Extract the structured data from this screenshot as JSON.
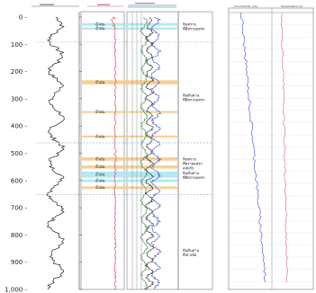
{
  "depth_axis": {
    "ticks": [
      "0",
      "100",
      "200",
      "300",
      "400",
      "500",
      "600",
      "700",
      "800",
      "900",
      "1,000"
    ]
  },
  "zones": [
    {
      "label": "น้ำมัน",
      "depth_top": 22,
      "depth_bottom": 32,
      "color": "cyan"
    },
    {
      "label": "น้ำมัน",
      "depth_top": 38,
      "depth_bottom": 46,
      "color": "cyan"
    },
    {
      "label": "น้ำมัน",
      "depth_top": 232,
      "depth_bottom": 247,
      "color": "orange"
    },
    {
      "label": "น้ำมัน",
      "depth_top": 345,
      "depth_bottom": 352,
      "color": "orange"
    },
    {
      "label": "น้ำมัน",
      "depth_top": 435,
      "depth_bottom": 442,
      "color": "orange"
    },
    {
      "label": "น้ำมัน",
      "depth_top": 515,
      "depth_bottom": 527,
      "color": "orange"
    },
    {
      "label": "น้ำมัน",
      "depth_top": 545,
      "depth_bottom": 556,
      "color": "orange"
    },
    {
      "label": "น้ำมัน",
      "depth_top": 567,
      "depth_bottom": 590,
      "color": "cyan"
    },
    {
      "label": "น้ำมัน",
      "depth_top": 596,
      "depth_bottom": 606,
      "color": "cyan"
    },
    {
      "label": "น้ำมัน",
      "depth_top": 622,
      "depth_bottom": 631,
      "color": "orange"
    }
  ],
  "boundaries_depth": [
    92,
    462,
    652
  ],
  "lithology_labels": [
    {
      "lines": [
        "หินทราย",
        "ที่มีทรายแทรก"
      ],
      "depth": 40
    },
    {
      "lines": [
        "หินดินดาน",
        "ที่มีทรายแทรก"
      ],
      "depth": 300
    },
    {
      "lines": [
        "หินทราย",
        "ที่ทรายแทรก",
        "สลับกับ",
        "หินดินดาน",
        "ที่มีทรายแทรก"
      ],
      "depth": 560
    },
    {
      "lines": [
        "หินดินดาน",
        "สีเทาเข้ม"
      ],
      "depth": 870
    }
  ],
  "panel2_headers": [
    "Conductivity (uS)",
    "Temperature (C)"
  ],
  "colors": {
    "cyan": "#aee6f2",
    "orange": "#f8c98a",
    "red_curve": "#e05060",
    "blue_curve": "#3b4fd0",
    "green_curve": "#2f8f3a",
    "black_curve": "#222222",
    "pink_curve": "#e35a7a",
    "dash": "#9aa6c8"
  }
}
